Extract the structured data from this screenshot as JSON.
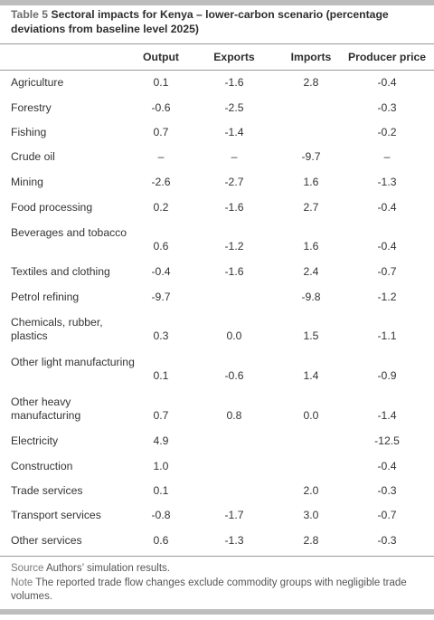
{
  "table": {
    "label": "Table 5",
    "title": "Sectoral impacts for Kenya – lower-carbon scenario (percentage deviations from baseline level 2025)",
    "columns": [
      "Output",
      "Exports",
      "Imports",
      "Producer price"
    ],
    "rows": [
      {
        "sector": "Agriculture",
        "output": "0.1",
        "exports": "-1.6",
        "imports": "2.8",
        "price": "-0.4"
      },
      {
        "sector": "Forestry",
        "output": "-0.6",
        "exports": "-2.5",
        "imports": "",
        "price": "-0.3"
      },
      {
        "sector": "Fishing",
        "output": "0.7",
        "exports": "-1.4",
        "imports": "",
        "price": "-0.2"
      },
      {
        "sector": "Crude oil",
        "output": "–",
        "exports": "–",
        "imports": "-9.7",
        "price": "–"
      },
      {
        "sector": "Mining",
        "output": "-2.6",
        "exports": "-2.7",
        "imports": "1.6",
        "price": "-1.3"
      },
      {
        "sector": "Food processing",
        "output": "0.2",
        "exports": "-1.6",
        "imports": "2.7",
        "price": "-0.4"
      },
      {
        "sector": "Beverages and tobacco",
        "output": "0.6",
        "exports": "-1.2",
        "imports": "1.6",
        "price": "-0.4"
      },
      {
        "sector": "Textiles and clothing",
        "output": "-0.4",
        "exports": "-1.6",
        "imports": "2.4",
        "price": "-0.7"
      },
      {
        "sector": "Petrol refining",
        "output": "-9.7",
        "exports": "",
        "imports": "-9.8",
        "price": "-1.2"
      },
      {
        "sector": "Chemicals, rubber, plastics",
        "output": "0.3",
        "exports": "0.0",
        "imports": "1.5",
        "price": "-1.1"
      },
      {
        "sector": "Other light manufacturing",
        "output": "0.1",
        "exports": "-0.6",
        "imports": "1.4",
        "price": "-0.9"
      },
      {
        "sector": "Other heavy manufacturing",
        "output": "0.7",
        "exports": "0.8",
        "imports": "0.0",
        "price": "-1.4"
      },
      {
        "sector": "Electricity",
        "output": "4.9",
        "exports": "",
        "imports": "",
        "price": "-12.5"
      },
      {
        "sector": "Construction",
        "output": "1.0",
        "exports": "",
        "imports": "",
        "price": "-0.4"
      },
      {
        "sector": "Trade services",
        "output": "0.1",
        "exports": "",
        "imports": "2.0",
        "price": "-0.3"
      },
      {
        "sector": "Transport services",
        "output": "-0.8",
        "exports": "-1.7",
        "imports": "3.0",
        "price": "-0.7"
      },
      {
        "sector": "Other services",
        "output": "0.6",
        "exports": "-1.3",
        "imports": "2.8",
        "price": "-0.3"
      }
    ]
  },
  "footnotes": {
    "source_label": "Source",
    "source_text": "Authors’ simulation results.",
    "note_label": "Note",
    "note_text": "The reported trade flow changes exclude commodity groups with negligible trade volumes."
  }
}
